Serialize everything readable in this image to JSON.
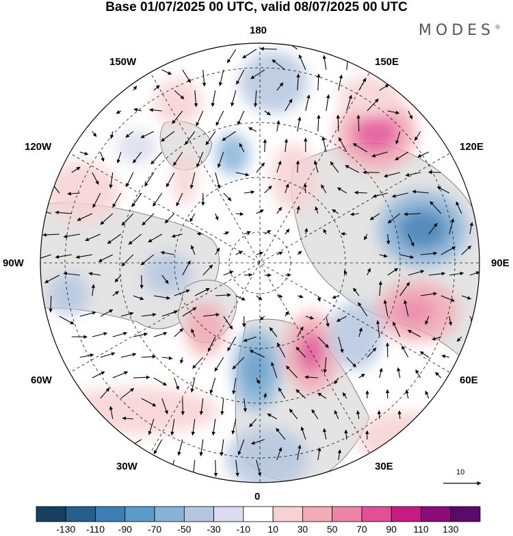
{
  "title": "Base 01/07/2025 00 UTC, valid 08/07/2025 00 UTC",
  "brand": "MODES",
  "brand_mark": "®",
  "longitude_labels": {
    "lon_180": "180",
    "lon_150e": "150E",
    "lon_120e": "120E",
    "lon_90e": "90E",
    "lon_60e": "60E",
    "lon_30e": "30E",
    "lon_0": "0",
    "lon_30w": "30W",
    "lon_60w": "60W",
    "lon_90w": "90W",
    "lon_120w": "120W",
    "lon_150w": "150W"
  },
  "reference_vector_label": "10",
  "colorbar": {
    "colors": [
      "#16405f",
      "#245f8d",
      "#3a7fb6",
      "#5a9bc9",
      "#88b3d9",
      "#b5c6e0",
      "#dcdcee",
      "#ffffff",
      "#f7d2d3",
      "#f3abb5",
      "#ee84a8",
      "#e34f97",
      "#c51b82",
      "#8e0c79",
      "#5a0a6a"
    ],
    "labels": [
      "-130",
      "-110",
      "-90",
      "-70",
      "-50",
      "-30",
      "-10",
      "10",
      "30",
      "50",
      "70",
      "90",
      "110",
      "130"
    ]
  },
  "colors": {
    "land": "#e4e4e4",
    "positive_anomaly": "#ee84a8",
    "negative_anomaly": "#3a7fb6"
  }
}
